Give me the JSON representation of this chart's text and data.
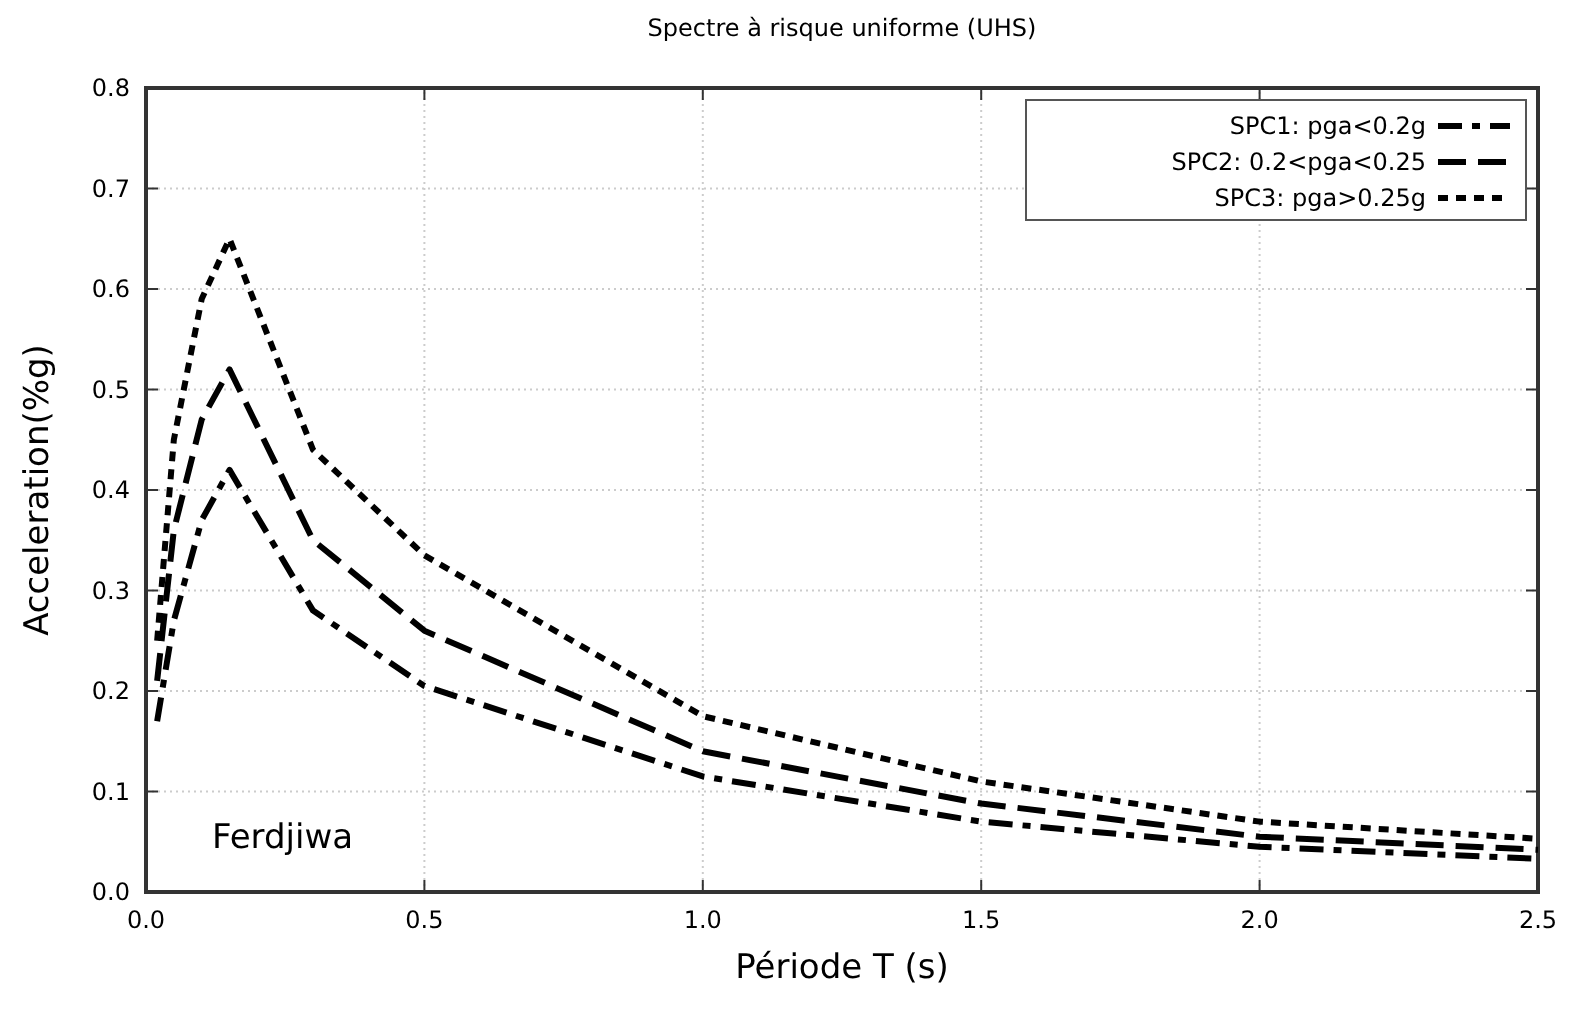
{
  "chart_data": {
    "type": "line",
    "title": "Spectre à risque uniforme (UHS)",
    "xlabel": "Période T (s)",
    "ylabel": "Acceleration(%g)",
    "x": [
      0.02,
      0.05,
      0.1,
      0.15,
      0.3,
      0.5,
      1.0,
      1.5,
      2.0,
      2.5
    ],
    "series": [
      {
        "name": "SPC1: pga<0.2g",
        "color": "#000000",
        "line_style": "dashdot",
        "values": [
          0.17,
          0.27,
          0.37,
          0.42,
          0.28,
          0.205,
          0.115,
          0.07,
          0.045,
          0.033
        ]
      },
      {
        "name": "SPC2: 0.2<pga<0.25",
        "color": "#000000",
        "line_style": "dashed",
        "values": [
          0.21,
          0.36,
          0.47,
          0.52,
          0.35,
          0.26,
          0.14,
          0.088,
          0.055,
          0.042
        ]
      },
      {
        "name": "SPC3: pga>0.25g",
        "color": "#000000",
        "line_style": "dotted",
        "values": [
          0.25,
          0.45,
          0.59,
          0.65,
          0.44,
          0.335,
          0.175,
          0.11,
          0.07,
          0.053
        ]
      }
    ],
    "xlim": [
      0,
      2.5
    ],
    "xticks": [
      {
        "value": 0,
        "label": "0.0"
      },
      0.5,
      {
        "value": 1,
        "label": "1.0"
      },
      1.5,
      {
        "value": 2,
        "label": "2.0"
      },
      2.5
    ],
    "ylim": [
      0,
      0.8
    ],
    "yticks": [
      {
        "value": 0,
        "label": "0.0"
      },
      0.1,
      0.2,
      0.3,
      0.4,
      0.5,
      0.6,
      0.7,
      0.8
    ],
    "grid": true,
    "legend": "top right",
    "annotations": [
      "Ferdjiwa"
    ]
  }
}
